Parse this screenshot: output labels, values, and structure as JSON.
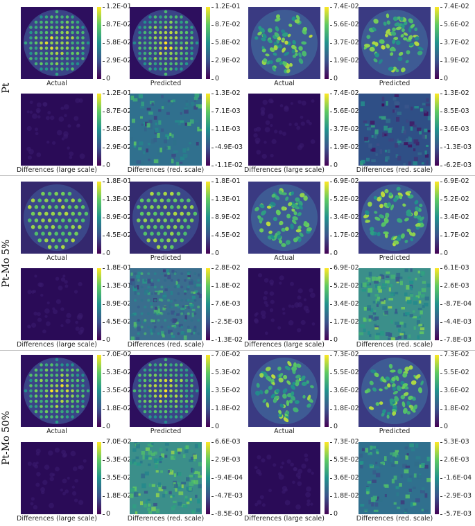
{
  "rows": [
    {
      "label": "Pt"
    },
    {
      "label": "Pt-Mo 5%"
    },
    {
      "label": "Pt-Mo 50%"
    }
  ],
  "captions": {
    "actual": "Actual",
    "predicted": "Predicted",
    "diff_large": "Differences (large scale)",
    "diff_red": "Differences (red. scale)"
  },
  "panels": [
    {
      "id": "r1-a-actual",
      "caption": "actual",
      "ticks": [
        "1.2E-01",
        "8.7E-02",
        "5.8E-02",
        "2.9E-02",
        "0"
      ],
      "pattern": "grid"
    },
    {
      "id": "r1-a-pred",
      "caption": "predicted",
      "ticks": [
        "1.2E-01",
        "8.7E-02",
        "5.8E-02",
        "2.9E-02",
        "0"
      ],
      "pattern": "grid"
    },
    {
      "id": "r1-b-actual",
      "caption": "actual",
      "ticks": [
        "7.4E-02",
        "5.6E-02",
        "3.7E-02",
        "1.9E-02",
        "0"
      ],
      "pattern": "blob"
    },
    {
      "id": "r1-b-pred",
      "caption": "predicted",
      "ticks": [
        "7.4E-02",
        "5.6E-02",
        "3.7E-02",
        "1.9E-02",
        "0"
      ],
      "pattern": "blob"
    },
    {
      "id": "r1-a-diffL",
      "caption": "diff_large",
      "ticks": [
        "1.2E-01",
        "8.7E-02",
        "5.8E-02",
        "2.9E-02",
        "0"
      ],
      "pattern": "dark"
    },
    {
      "id": "r1-a-diffR",
      "caption": "diff_red",
      "ticks": [
        "1.3E-02",
        "7.1E-03",
        "1.1E-03",
        "-4.9E-03",
        "-1.1E-02"
      ],
      "pattern": "noise"
    },
    {
      "id": "r1-b-diffL",
      "caption": "diff_large",
      "ticks": [
        "7.4E-02",
        "5.6E-02",
        "3.7E-02",
        "1.9E-02",
        "0"
      ],
      "pattern": "dark"
    },
    {
      "id": "r1-b-diffR",
      "caption": "diff_red",
      "ticks": [
        "1.3E-02",
        "8.5E-03",
        "3.6E-03",
        "-1.3E-03",
        "-6.2E-03"
      ],
      "pattern": "noiseDark"
    },
    {
      "id": "r2-a-actual",
      "caption": "actual",
      "ticks": [
        "1.8E-01",
        "1.3E-01",
        "8.9E-02",
        "4.5E-02",
        "0"
      ],
      "pattern": "hex"
    },
    {
      "id": "r2-a-pred",
      "caption": "predicted",
      "ticks": [
        "1.8E-01",
        "1.3E-01",
        "8.9E-02",
        "4.5E-02",
        "0"
      ],
      "pattern": "hex"
    },
    {
      "id": "r2-b-actual",
      "caption": "actual",
      "ticks": [
        "6.9E-02",
        "5.2E-02",
        "3.4E-02",
        "1.7E-02",
        "0"
      ],
      "pattern": "blob"
    },
    {
      "id": "r2-b-pred",
      "caption": "predicted",
      "ticks": [
        "6.9E-02",
        "5.2E-02",
        "3.4E-02",
        "1.7E-02",
        "0"
      ],
      "pattern": "blob"
    },
    {
      "id": "r2-a-diffL",
      "caption": "diff_large",
      "ticks": [
        "1.8E-01",
        "1.3E-01",
        "8.9E-02",
        "4.5E-02",
        "0"
      ],
      "pattern": "dark"
    },
    {
      "id": "r2-a-diffR",
      "caption": "diff_red",
      "ticks": [
        "2.8E-02",
        "1.8E-02",
        "7.6E-03",
        "-2.5E-03",
        "-1.3E-02"
      ],
      "pattern": "hexNoise"
    },
    {
      "id": "r2-b-diffL",
      "caption": "diff_large",
      "ticks": [
        "6.9E-02",
        "5.2E-02",
        "3.4E-02",
        "1.7E-02",
        "0"
      ],
      "pattern": "dark"
    },
    {
      "id": "r2-b-diffR",
      "caption": "diff_red",
      "ticks": [
        "6.1E-03",
        "2.6E-03",
        "-8.7E-04",
        "-4.4E-03",
        "-7.8E-03"
      ],
      "pattern": "noiseBright"
    },
    {
      "id": "r3-a-actual",
      "caption": "actual",
      "ticks": [
        "7.0E-02",
        "5.3E-02",
        "3.5E-02",
        "1.8E-02",
        "0"
      ],
      "pattern": "grid"
    },
    {
      "id": "r3-a-pred",
      "caption": "predicted",
      "ticks": [
        "7.0E-02",
        "5.3E-02",
        "3.5E-02",
        "1.8E-02",
        "0"
      ],
      "pattern": "grid"
    },
    {
      "id": "r3-b-actual",
      "caption": "actual",
      "ticks": [
        "7.3E-02",
        "5.5E-02",
        "3.6E-02",
        "1.8E-02",
        "0"
      ],
      "pattern": "blob"
    },
    {
      "id": "r3-b-pred",
      "caption": "predicted",
      "ticks": [
        "7.3E-02",
        "5.5E-02",
        "3.6E-02",
        "1.8E-02",
        "0"
      ],
      "pattern": "blob"
    },
    {
      "id": "r3-a-diffL",
      "caption": "diff_large",
      "ticks": [
        "7.0E-02",
        "5.3E-02",
        "3.5E-02",
        "1.8E-02",
        "0"
      ],
      "pattern": "dark"
    },
    {
      "id": "r3-a-diffR",
      "caption": "diff_red",
      "ticks": [
        "6.6E-03",
        "2.9E-03",
        "-9.4E-04",
        "-4.7E-03",
        "-8.5E-03"
      ],
      "pattern": "noiseBright"
    },
    {
      "id": "r3-b-diffL",
      "caption": "diff_large",
      "ticks": [
        "7.3E-02",
        "5.5E-02",
        "3.6E-02",
        "1.8E-02",
        "0"
      ],
      "pattern": "dark"
    },
    {
      "id": "r3-b-diffR",
      "caption": "diff_red",
      "ticks": [
        "5.3E-03",
        "2.6E-03",
        "-1.6E-04",
        "-2.9E-03",
        "-5.7E-03"
      ],
      "pattern": "noise"
    }
  ]
}
